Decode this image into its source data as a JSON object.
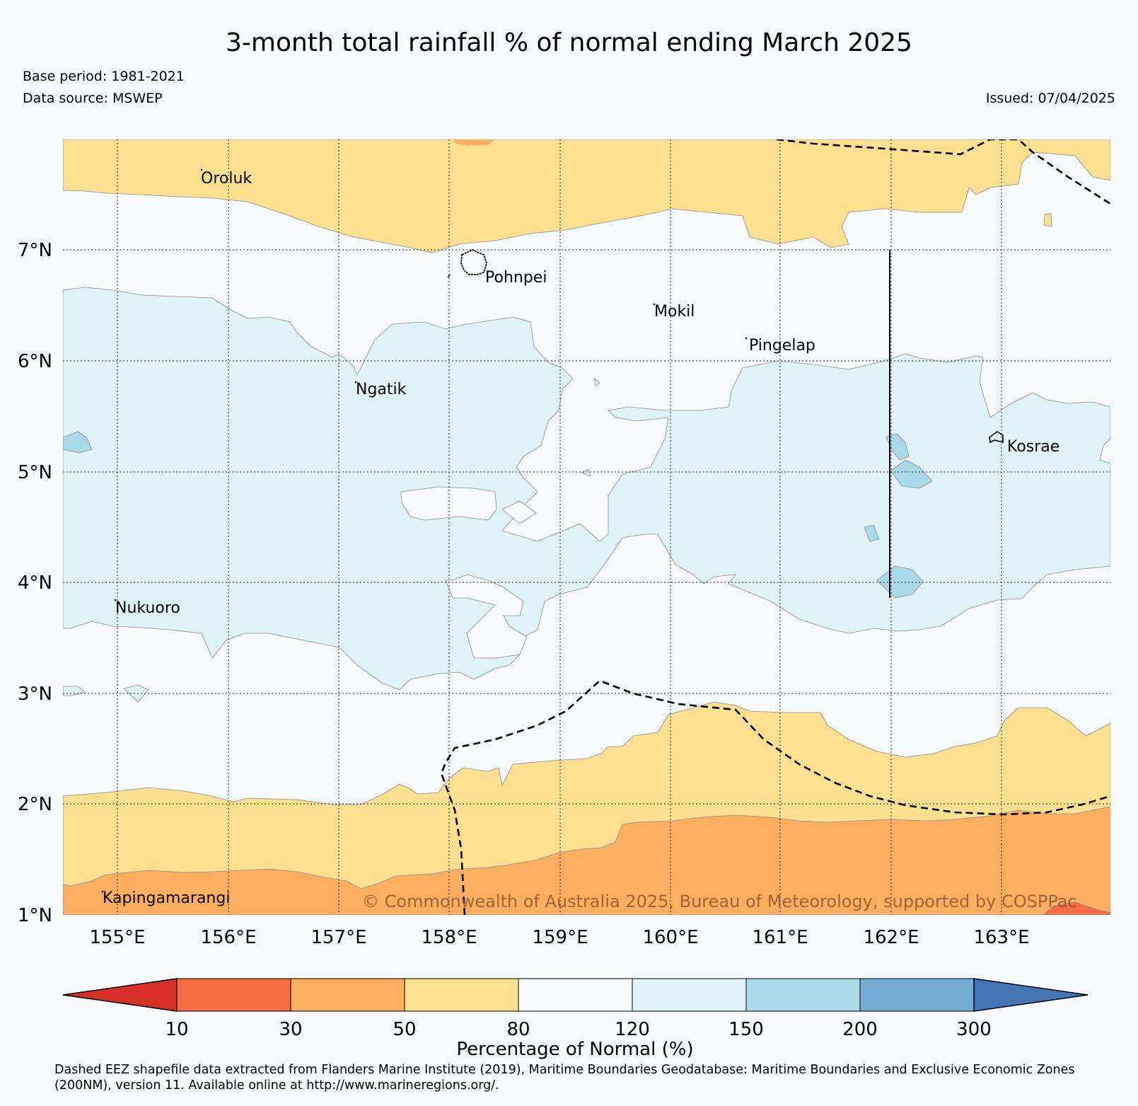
{
  "title": "3-month total rainfall % of normal ending March 2025",
  "base_period": "Base period: 1981-2021",
  "data_source": "Data source: MSWEP",
  "issued": "Issued: 07/04/2025",
  "map": {
    "lat_labels": [
      "7°N",
      "6°N",
      "5°N",
      "4°N",
      "3°N",
      "2°N",
      "1°N"
    ],
    "lon_labels": [
      "155°E",
      "156°E",
      "157°E",
      "158°E",
      "159°E",
      "160°E",
      "161°E",
      "162°E",
      "163°E"
    ],
    "places": [
      "Oroluk",
      "Pohnpei",
      "Mokil",
      "Pingelap",
      "Ngatik",
      "Kosrae",
      "Nukuoro",
      "Kapingamarangi"
    ],
    "copyright": "© Commonwealth of Australia 2025, Bureau of Meteorology, supported by COSPPac"
  },
  "colorbar": {
    "bins": [
      "<10",
      "10-30",
      "30-50",
      "50-80",
      "80-120",
      "120-150",
      "150-200",
      "200-300",
      ">300"
    ],
    "colors": [
      "#d73027",
      "#f46d43",
      "#fdae61",
      "#fee090",
      "#f7fbfd",
      "#e0f3f8",
      "#abd9e9",
      "#74add1",
      "#4575b4"
    ],
    "ticks": [
      "10",
      "30",
      "50",
      "80",
      "120",
      "150",
      "200",
      "300"
    ],
    "label": "Percentage of Normal (%)"
  },
  "footnote": "Dashed EEZ shapefile data extracted from Flanders Marine Institute (2019), Maritime Boundaries Geodatabase: Maritime Boundaries and Exclusive Economic Zones (200NM), version 11. Available online at http://www.marineregions.org/."
}
